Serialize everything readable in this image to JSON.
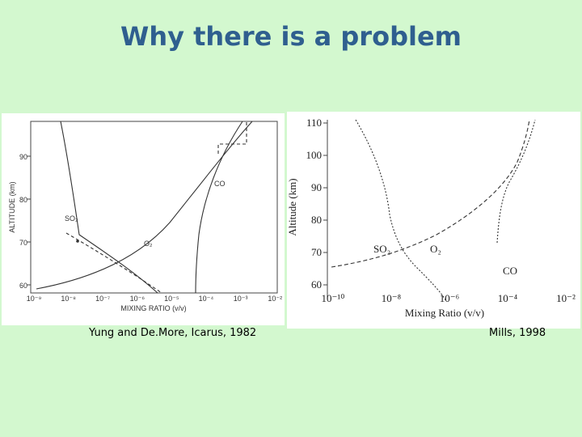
{
  "title": "Why there is a problem",
  "figures": [
    {
      "y_axis_label": "ALTITUDE (km)",
      "x_axis_label": "MIXING RATIO (v/v)",
      "yticks": [
        "60",
        "70",
        "80",
        "90"
      ],
      "xticks": [
        "10⁻⁹",
        "10⁻⁸",
        "10⁻⁷",
        "10⁻⁶",
        "10⁻⁵",
        "10⁻⁴",
        "10⁻³",
        "10⁻²"
      ],
      "curve_labels": [
        "SO₂",
        "O₂",
        "CO"
      ],
      "caption": "Yung and De.More, Icarus, 1982"
    },
    {
      "y_axis_label": "Altitude (km)",
      "x_axis_label": "Mixing Ratio (v/v)",
      "yticks": [
        "60",
        "70",
        "80",
        "90",
        "100",
        "110"
      ],
      "xticks": [
        "10⁻¹⁰",
        "10⁻⁸",
        "10⁻⁶",
        "10⁻⁴",
        "10⁻²"
      ],
      "curve_labels": [
        "SO₂",
        "O₂",
        "CO"
      ],
      "caption": "Mills, 1998"
    }
  ]
}
